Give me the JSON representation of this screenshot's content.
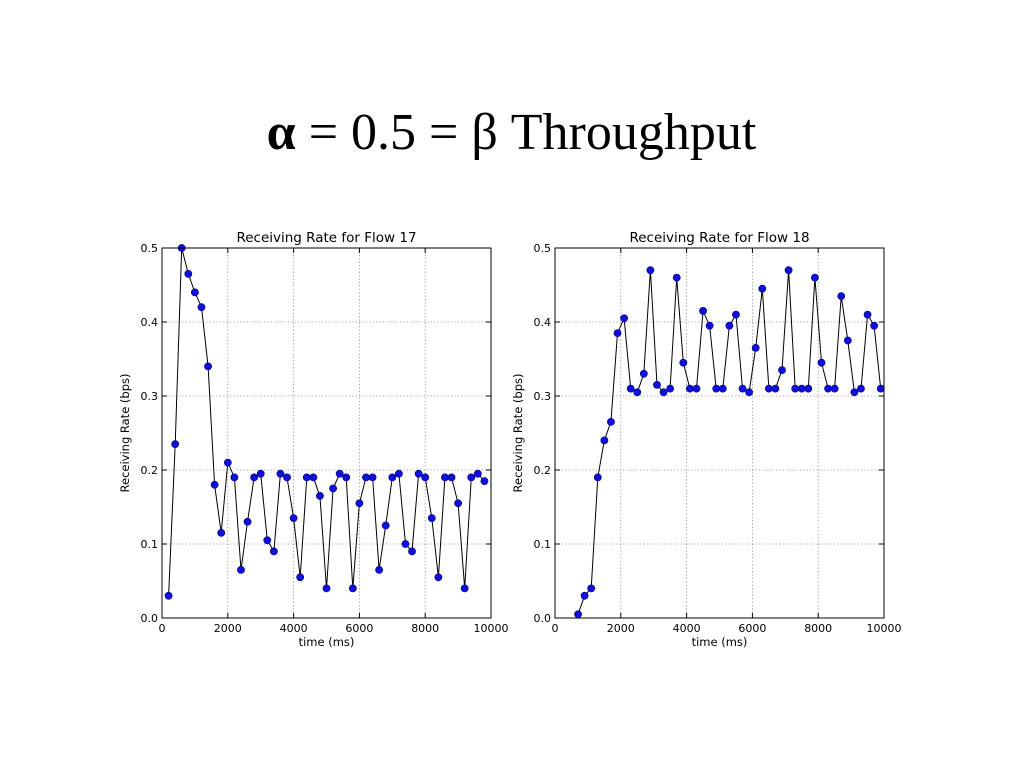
{
  "slide": {
    "title_alpha": "α",
    "title_rest": " = 0.5 = β Throughput"
  },
  "chart_data": [
    {
      "type": "line",
      "title": "Receiving Rate for Flow 17",
      "xlabel": "time (ms)",
      "ylabel": "Receiving Rate (bps)",
      "xlim": [
        0,
        10000
      ],
      "ylim": [
        0,
        0.5
      ],
      "xticks": [
        0,
        2000,
        4000,
        6000,
        8000,
        10000
      ],
      "yticks": [
        0.0,
        0.1,
        0.2,
        0.3,
        0.4,
        0.5
      ],
      "xtick_labels": [
        "0",
        "2000",
        "4000",
        "6000",
        "8000",
        "10000"
      ],
      "ytick_labels": [
        "0.0",
        "0.1",
        "0.2",
        "0.3",
        "0.4",
        "0.5"
      ],
      "grid": true,
      "marker_color": "#1010d8",
      "line_color": "#000000",
      "x": [
        200,
        400,
        600,
        800,
        1000,
        1200,
        1400,
        1600,
        1800,
        2000,
        2200,
        2400,
        2600,
        2800,
        3000,
        3200,
        3400,
        3600,
        3800,
        4000,
        4200,
        4400,
        4600,
        4800,
        5000,
        5200,
        5400,
        5600,
        5800,
        6000,
        6200,
        6400,
        6600,
        6800,
        7000,
        7200,
        7400,
        7600,
        7800,
        8000,
        8200,
        8400,
        8600,
        8800,
        9000,
        9200,
        9400,
        9600,
        9800
      ],
      "y": [
        0.03,
        0.235,
        0.5,
        0.465,
        0.44,
        0.42,
        0.34,
        0.18,
        0.115,
        0.21,
        0.19,
        0.065,
        0.13,
        0.19,
        0.195,
        0.105,
        0.09,
        0.195,
        0.19,
        0.135,
        0.055,
        0.19,
        0.19,
        0.165,
        0.04,
        0.175,
        0.195,
        0.19,
        0.04,
        0.155,
        0.19,
        0.19,
        0.065,
        0.125,
        0.19,
        0.195,
        0.1,
        0.09,
        0.195,
        0.19,
        0.135,
        0.055,
        0.19,
        0.19,
        0.155,
        0.04,
        0.19,
        0.195,
        0.185
      ]
    },
    {
      "type": "line",
      "title": "Receiving Rate for Flow 18",
      "xlabel": "time (ms)",
      "ylabel": "Receiving Rate (bps)",
      "xlim": [
        0,
        10000
      ],
      "ylim": [
        0,
        0.5
      ],
      "xticks": [
        0,
        2000,
        4000,
        6000,
        8000,
        10000
      ],
      "yticks": [
        0.0,
        0.1,
        0.2,
        0.3,
        0.4,
        0.5
      ],
      "xtick_labels": [
        "0",
        "2000",
        "4000",
        "6000",
        "8000",
        "10000"
      ],
      "ytick_labels": [
        "0.0",
        "0.1",
        "0.2",
        "0.3",
        "0.4",
        "0.5"
      ],
      "grid": true,
      "marker_color": "#1010d8",
      "line_color": "#000000",
      "x": [
        700,
        900,
        1100,
        1300,
        1500,
        1700,
        1900,
        2100,
        2300,
        2500,
        2700,
        2900,
        3100,
        3300,
        3500,
        3700,
        3900,
        4100,
        4300,
        4500,
        4700,
        4900,
        5100,
        5300,
        5500,
        5700,
        5900,
        6100,
        6300,
        6500,
        6700,
        6900,
        7100,
        7300,
        7500,
        7700,
        7900,
        8100,
        8300,
        8500,
        8700,
        8900,
        9100,
        9300,
        9500,
        9700,
        9900
      ],
      "y": [
        0.005,
        0.03,
        0.04,
        0.19,
        0.24,
        0.265,
        0.385,
        0.405,
        0.31,
        0.305,
        0.33,
        0.47,
        0.315,
        0.305,
        0.31,
        0.46,
        0.345,
        0.31,
        0.31,
        0.415,
        0.395,
        0.31,
        0.31,
        0.395,
        0.41,
        0.31,
        0.305,
        0.365,
        0.445,
        0.31,
        0.31,
        0.335,
        0.47,
        0.31,
        0.31,
        0.31,
        0.46,
        0.345,
        0.31,
        0.31,
        0.435,
        0.375,
        0.305,
        0.31,
        0.41,
        0.395,
        0.31
      ]
    }
  ]
}
